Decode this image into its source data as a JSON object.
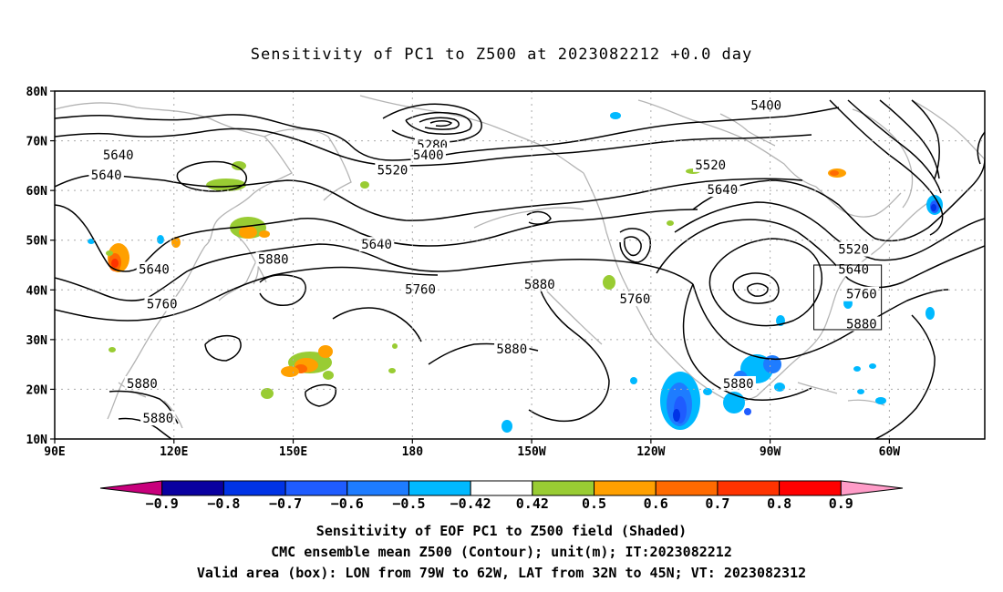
{
  "title": "Sensitivity of PC1 to Z500 at 2023082212 +0.0 day",
  "lat_labels": [
    "80N",
    "70N",
    "60N",
    "50N",
    "40N",
    "30N",
    "20N",
    "10N"
  ],
  "lon_labels": [
    "90E",
    "120E",
    "150E",
    "180",
    "150W",
    "120W",
    "90W",
    "60W"
  ],
  "contour_labels": [
    {
      "text": "5640",
      "lon": 106,
      "lat": 67
    },
    {
      "text": "5640",
      "lon": 103,
      "lat": 63
    },
    {
      "text": "5280",
      "lon": 185,
      "lat": 69
    },
    {
      "text": "5400",
      "lon": 184,
      "lat": 67
    },
    {
      "text": "5520",
      "lon": 175,
      "lat": 64
    },
    {
      "text": "5400",
      "lon": 269,
      "lat": 77
    },
    {
      "text": "5520",
      "lon": 255,
      "lat": 65
    },
    {
      "text": "5640",
      "lon": 258,
      "lat": 60
    },
    {
      "text": "5640",
      "lon": 171,
      "lat": 49
    },
    {
      "text": "5640",
      "lon": 115,
      "lat": 44
    },
    {
      "text": "5880",
      "lon": 145,
      "lat": 46
    },
    {
      "text": "5760",
      "lon": 182,
      "lat": 40
    },
    {
      "text": "5880",
      "lon": 212,
      "lat": 41
    },
    {
      "text": "5760",
      "lon": 236,
      "lat": 38
    },
    {
      "text": "5760",
      "lon": 117,
      "lat": 37
    },
    {
      "text": "5880",
      "lon": 205,
      "lat": 28
    },
    {
      "text": "5880",
      "lon": 262,
      "lat": 21
    },
    {
      "text": "5520",
      "lon": 291,
      "lat": 48
    },
    {
      "text": "5640",
      "lon": 291,
      "lat": 44
    },
    {
      "text": "5760",
      "lon": 293,
      "lat": 39
    },
    {
      "text": "5880",
      "lon": 293,
      "lat": 33
    },
    {
      "text": "5880",
      "lon": 112,
      "lat": 21
    },
    {
      "text": "5880",
      "lon": 116,
      "lat": 14
    }
  ],
  "valid_box": {
    "lon_west": 281,
    "lon_east": 298,
    "lat_south": 32,
    "lat_north": 45
  },
  "colorbar": {
    "labels": [
      "-0.9",
      "-0.8",
      "-0.7",
      "-0.6",
      "-0.5",
      "-0.42",
      "0.42",
      "0.5",
      "0.6",
      "0.7",
      "0.8",
      "0.9"
    ],
    "colors": [
      "#c8007c",
      "#0a00a0",
      "#0033e6",
      "#1f5cff",
      "#1e7cff",
      "#00b9ff",
      "#ffffff",
      "#99cc33",
      "#ffa000",
      "#ff6a00",
      "#ff3300",
      "#ff0000",
      "#ff9cc8"
    ]
  },
  "caption": {
    "line1": "Sensitivity of EOF PC1 to Z500 field (Shaded)",
    "line2": "CMC ensemble mean Z500 (Contour); unit(m); IT:2023082212",
    "line3": "Valid area (box): LON from 79W to 62W, LAT from 32N to 45N; VT: 2023082312"
  }
}
